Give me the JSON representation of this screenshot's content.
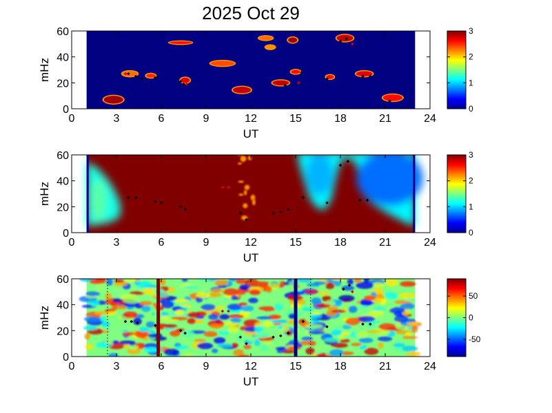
{
  "figure": {
    "title": "2025 Oct 29"
  },
  "colors": {
    "dark_blue": "#00008f",
    "dark_red": "#800000"
  },
  "chart_data": [
    {
      "type": "heatmap",
      "title": "2025 Oct 29",
      "xlabel": "UT",
      "ylabel": "mHz",
      "xlim": [
        0,
        24
      ],
      "ylim": [
        0,
        60
      ],
      "xticks": [
        0,
        3,
        6,
        9,
        12,
        15,
        18,
        21,
        24
      ],
      "yticks": [
        0,
        20,
        40,
        60
      ],
      "data_x_range": [
        1,
        23
      ],
      "colorbar": {
        "range": [
          0,
          3
        ],
        "ticks": [
          0,
          1,
          2,
          3
        ]
      },
      "background_value": 0,
      "patches": [
        {
          "x": 2.8,
          "y": 4,
          "w": 1.3,
          "h": 6,
          "v": 2.9
        },
        {
          "x": 3.9,
          "y": 25,
          "w": 1.0,
          "h": 4,
          "v": 2.3
        },
        {
          "x": 5.3,
          "y": 24,
          "w": 0.6,
          "h": 3,
          "v": 2.5
        },
        {
          "x": 7.6,
          "y": 20,
          "w": 0.6,
          "h": 4,
          "v": 2.7
        },
        {
          "x": 7.3,
          "y": 50,
          "w": 1.5,
          "h": 2,
          "v": 2.6
        },
        {
          "x": 10.1,
          "y": 33,
          "w": 1.6,
          "h": 4,
          "v": 2.4
        },
        {
          "x": 11.4,
          "y": 12,
          "w": 1.2,
          "h": 5,
          "v": 2.8
        },
        {
          "x": 13.0,
          "y": 53,
          "w": 0.9,
          "h": 3,
          "v": 2.3
        },
        {
          "x": 13.3,
          "y": 46,
          "w": 0.6,
          "h": 3,
          "v": 2.2
        },
        {
          "x": 14.0,
          "y": 18,
          "w": 1.1,
          "h": 4,
          "v": 2.8
        },
        {
          "x": 14.8,
          "y": 51,
          "w": 0.6,
          "h": 4,
          "v": 2.9
        },
        {
          "x": 15.0,
          "y": 27,
          "w": 0.6,
          "h": 3,
          "v": 2.6
        },
        {
          "x": 17.3,
          "y": 23,
          "w": 0.5,
          "h": 3,
          "v": 2.6
        },
        {
          "x": 18.3,
          "y": 52,
          "w": 1.1,
          "h": 5,
          "v": 2.8
        },
        {
          "x": 19.6,
          "y": 25,
          "w": 1.1,
          "h": 4,
          "v": 2.7
        },
        {
          "x": 21.5,
          "y": 6,
          "w": 1.3,
          "h": 5,
          "v": 2.6
        }
      ],
      "markers": [
        {
          "x": 3.8,
          "y": 27
        },
        {
          "x": 4.3,
          "y": 25
        },
        {
          "x": 4.7,
          "y": 23
        },
        {
          "x": 5.6,
          "y": 24
        },
        {
          "x": 7.3,
          "y": 21
        },
        {
          "x": 7.5,
          "y": 19
        },
        {
          "x": 14.3,
          "y": 18
        },
        {
          "x": 15.4,
          "y": 28
        },
        {
          "x": 17.1,
          "y": 23
        },
        {
          "x": 18.0,
          "y": 52
        },
        {
          "x": 18.4,
          "y": 54
        },
        {
          "x": 19.5,
          "y": 25
        },
        {
          "x": 20.0,
          "y": 25
        },
        {
          "x": 21.3,
          "y": 6
        }
      ],
      "red_markers": [
        {
          "x": 3.6,
          "y": 27
        },
        {
          "x": 7.7,
          "y": 19
        },
        {
          "x": 15.2,
          "y": 20
        },
        {
          "x": 18.8,
          "y": 50
        }
      ]
    },
    {
      "type": "heatmap",
      "xlabel": "UT",
      "ylabel": "mHz",
      "xlim": [
        0,
        24
      ],
      "ylim": [
        0,
        60
      ],
      "xticks": [
        0,
        3,
        6,
        9,
        12,
        15,
        18,
        21,
        24
      ],
      "yticks": [
        0,
        20,
        40,
        60
      ],
      "data_x_range": [
        1,
        23
      ],
      "colorbar": {
        "range": [
          0,
          3
        ],
        "ticks": [
          0,
          1,
          2,
          3
        ]
      },
      "background_value": 3,
      "boundary_low": [
        [
          1.0,
          55
        ],
        [
          1.7,
          50
        ],
        [
          2.2,
          44
        ],
        [
          2.6,
          38
        ],
        [
          2.9,
          32
        ],
        [
          3.2,
          24
        ],
        [
          3.3,
          18
        ],
        [
          3.2,
          12
        ],
        [
          2.8,
          9
        ],
        [
          2.2,
          7
        ],
        [
          1.6,
          6
        ],
        [
          1.0,
          5
        ]
      ],
      "boundary_high": [
        [
          15.1,
          60
        ],
        [
          15.3,
          50
        ],
        [
          15.6,
          38
        ],
        [
          15.9,
          28
        ],
        [
          16.2,
          22
        ],
        [
          16.6,
          18
        ],
        [
          17.0,
          18
        ],
        [
          17.4,
          26
        ],
        [
          17.7,
          42
        ],
        [
          18.0,
          55
        ],
        [
          18.5,
          58
        ],
        [
          19.0,
          54
        ],
        [
          19.3,
          40
        ],
        [
          19.6,
          28
        ],
        [
          20.2,
          22
        ],
        [
          21.0,
          16
        ],
        [
          21.8,
          11
        ],
        [
          22.5,
          7
        ],
        [
          23.0,
          5
        ]
      ],
      "markers": [
        {
          "x": 3.8,
          "y": 27
        },
        {
          "x": 4.3,
          "y": 27
        },
        {
          "x": 5.6,
          "y": 24
        },
        {
          "x": 6.0,
          "y": 23
        },
        {
          "x": 7.3,
          "y": 20
        },
        {
          "x": 7.6,
          "y": 18
        },
        {
          "x": 11.3,
          "y": 15
        },
        {
          "x": 11.7,
          "y": 10
        },
        {
          "x": 13.5,
          "y": 15
        },
        {
          "x": 14.0,
          "y": 16
        },
        {
          "x": 14.5,
          "y": 18
        },
        {
          "x": 15.5,
          "y": 27
        },
        {
          "x": 17.1,
          "y": 23
        },
        {
          "x": 18.0,
          "y": 52
        },
        {
          "x": 18.5,
          "y": 55
        },
        {
          "x": 19.3,
          "y": 25
        },
        {
          "x": 19.8,
          "y": 25
        }
      ],
      "red_markers": [
        {
          "x": 10.1,
          "y": 35
        },
        {
          "x": 10.5,
          "y": 35
        }
      ]
    },
    {
      "type": "heatmap",
      "xlabel": "UT",
      "ylabel": "mHz",
      "xlim": [
        0,
        24
      ],
      "ylim": [
        0,
        60
      ],
      "xticks": [
        0,
        3,
        6,
        9,
        12,
        15,
        18,
        21,
        24
      ],
      "yticks": [
        0,
        20,
        40,
        60
      ],
      "data_x_range": [
        1,
        23
      ],
      "colorbar": {
        "range": [
          -90,
          90
        ],
        "ticks": [
          50,
          0,
          -50
        ]
      },
      "background_value": 0,
      "vertical_lines": [
        {
          "x": 5.8,
          "v": 90
        },
        {
          "x": 15.0,
          "v": -90
        }
      ],
      "dotted_lines": [
        2.4,
        16.0
      ],
      "markers": [
        {
          "x": 3.6,
          "y": 27
        },
        {
          "x": 4.0,
          "y": 27
        },
        {
          "x": 4.4,
          "y": 26
        },
        {
          "x": 5.6,
          "y": 24
        },
        {
          "x": 7.3,
          "y": 20
        },
        {
          "x": 7.6,
          "y": 18
        },
        {
          "x": 11.3,
          "y": 15
        },
        {
          "x": 11.7,
          "y": 10
        },
        {
          "x": 13.5,
          "y": 15
        },
        {
          "x": 14.0,
          "y": 16
        },
        {
          "x": 14.5,
          "y": 18
        },
        {
          "x": 15.5,
          "y": 27
        },
        {
          "x": 17.1,
          "y": 23
        },
        {
          "x": 18.2,
          "y": 52
        },
        {
          "x": 18.6,
          "y": 55
        },
        {
          "x": 19.5,
          "y": 25
        },
        {
          "x": 20.0,
          "y": 25
        }
      ],
      "red_markers": [
        {
          "x": 10.1,
          "y": 35
        },
        {
          "x": 10.5,
          "y": 35
        },
        {
          "x": 18.8,
          "y": 50
        }
      ]
    }
  ]
}
